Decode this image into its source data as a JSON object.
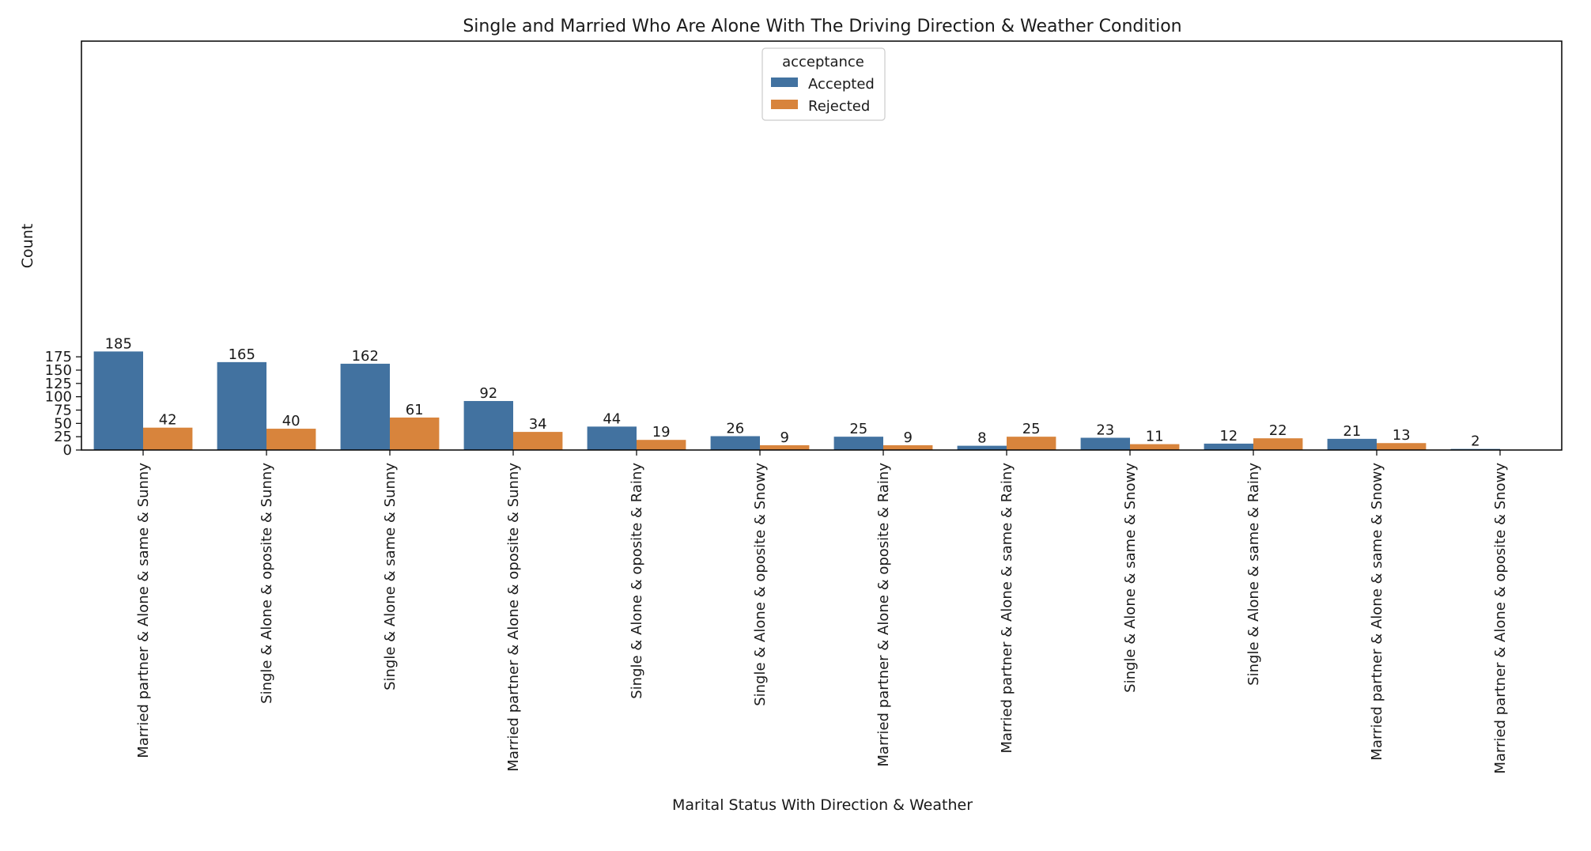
{
  "chart_data": {
    "type": "bar",
    "title": "Single and Married Who Are Alone With The Driving Direction & Weather Condition",
    "xlabel": "Marital Status With Direction & Weather",
    "ylabel": "Count",
    "ylim": [
      0,
      190
    ],
    "yticks": [
      0,
      25,
      50,
      75,
      100,
      125,
      150,
      175
    ],
    "grid": false,
    "legend": {
      "title": "acceptance",
      "position": "top-center"
    },
    "categories": [
      "Married partner & Alone & same & Sunny",
      "Single & Alone & oposite & Sunny",
      "Single & Alone & same & Sunny",
      "Married partner & Alone & oposite & Sunny",
      "Single & Alone & oposite & Rainy",
      "Single & Alone & oposite & Snowy",
      "Married partner & Alone & oposite & Rainy",
      "Married partner & Alone & same & Rainy",
      "Single & Alone & same & Snowy",
      "Single & Alone & same & Rainy",
      "Married partner & Alone & same & Snowy",
      "Married partner & Alone & oposite & Snowy"
    ],
    "series": [
      {
        "name": "Accepted",
        "color": "#4272a0",
        "values": [
          185,
          165,
          162,
          92,
          44,
          26,
          25,
          8,
          23,
          12,
          21,
          2
        ]
      },
      {
        "name": "Rejected",
        "color": "#d8843c",
        "values": [
          42,
          40,
          61,
          34,
          19,
          9,
          9,
          25,
          11,
          22,
          13,
          null
        ]
      }
    ]
  }
}
